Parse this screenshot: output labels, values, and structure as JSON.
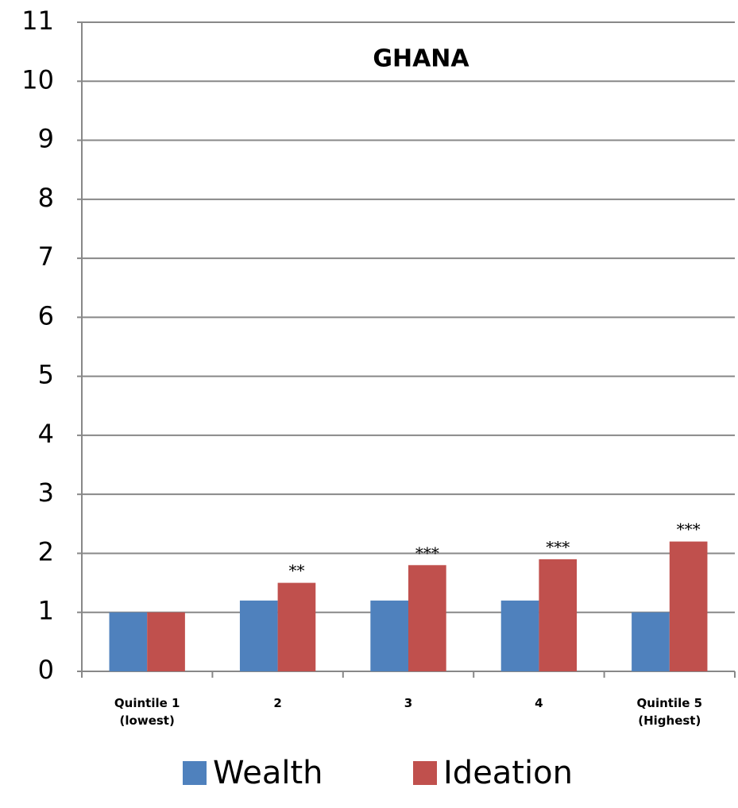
{
  "chart_data": {
    "type": "bar",
    "title": "GHANA",
    "categories": [
      "Quintile 1\n(lowest)",
      "2",
      "3",
      "4",
      "Quintile 5\n(Highest)"
    ],
    "series": [
      {
        "name": "Wealth",
        "color": "#4f81bd",
        "values": [
          1,
          1.2,
          1.2,
          1.2,
          1
        ]
      },
      {
        "name": "Ideation",
        "color": "#c0504d",
        "values": [
          1,
          1.5,
          1.8,
          1.9,
          2.2
        ]
      }
    ],
    "annotations": [
      null,
      "**",
      "***",
      "***",
      "***"
    ],
    "ylim": [
      0,
      11
    ],
    "yticks": [
      0,
      1,
      2,
      3,
      4,
      5,
      6,
      7,
      8,
      9,
      10,
      11
    ],
    "grid": true,
    "legend": "bottom"
  }
}
